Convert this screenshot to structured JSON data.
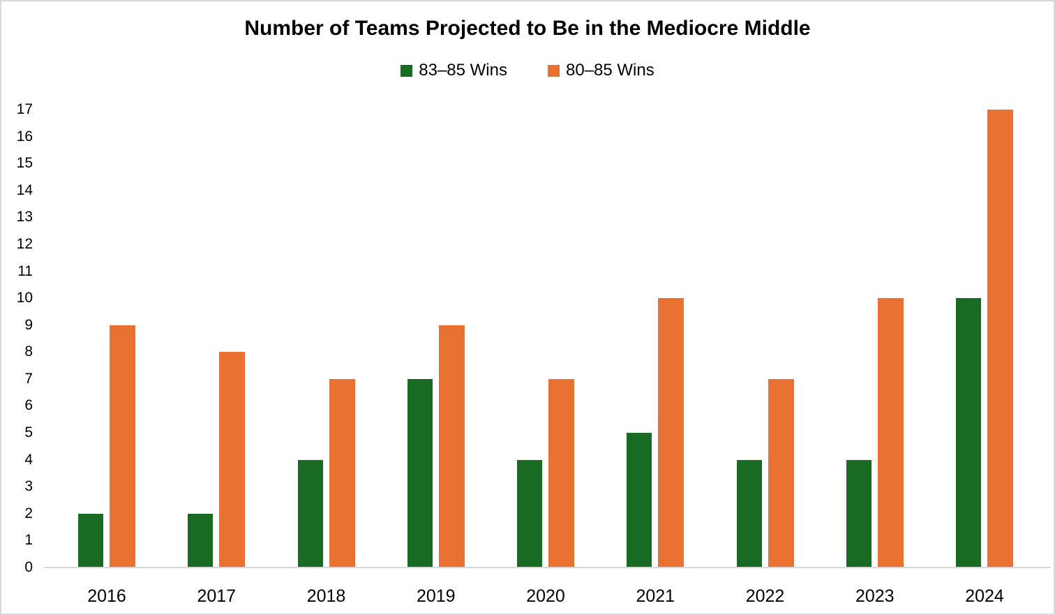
{
  "chart_data": {
    "type": "bar",
    "title": "Number of Teams Projected to Be in the Mediocre Middle",
    "categories": [
      "2016",
      "2017",
      "2018",
      "2019",
      "2020",
      "2021",
      "2022",
      "2023",
      "2024"
    ],
    "series": [
      {
        "name": "83–85 Wins",
        "color": "#196B24",
        "values": [
          2,
          2,
          4,
          7,
          4,
          5,
          4,
          4,
          10
        ]
      },
      {
        "name": "80–85 Wins",
        "color": "#E97132",
        "values": [
          9,
          8,
          7,
          9,
          7,
          10,
          7,
          10,
          17
        ]
      }
    ],
    "xlabel": "",
    "ylabel": "",
    "ylim": [
      0,
      17
    ],
    "ytick_step": 1,
    "grid": false,
    "legend_position": "top-center"
  },
  "colors": {
    "axis_line": "#D9D9D9",
    "border": "#D9D9D9",
    "background": "#FFFFFF",
    "text": "#000000"
  }
}
